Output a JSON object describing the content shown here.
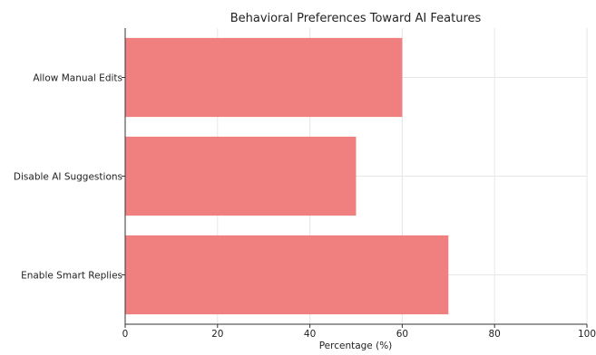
{
  "chart_data": {
    "type": "bar",
    "orientation": "horizontal",
    "title": "Behavioral Preferences Toward AI Features",
    "xlabel": "Percentage (%)",
    "ylabel": "",
    "categories": [
      "Enable Smart Replies",
      "Disable AI Suggestions",
      "Allow Manual Edits"
    ],
    "values": [
      70,
      50,
      60
    ],
    "xlim": [
      0,
      100
    ],
    "xticks": [
      0,
      20,
      40,
      60,
      80,
      100
    ],
    "grid": true,
    "legend": "none",
    "colors": {
      "bar": "#f08080",
      "grid": "#e6e6e6",
      "axis": "#333333"
    }
  }
}
